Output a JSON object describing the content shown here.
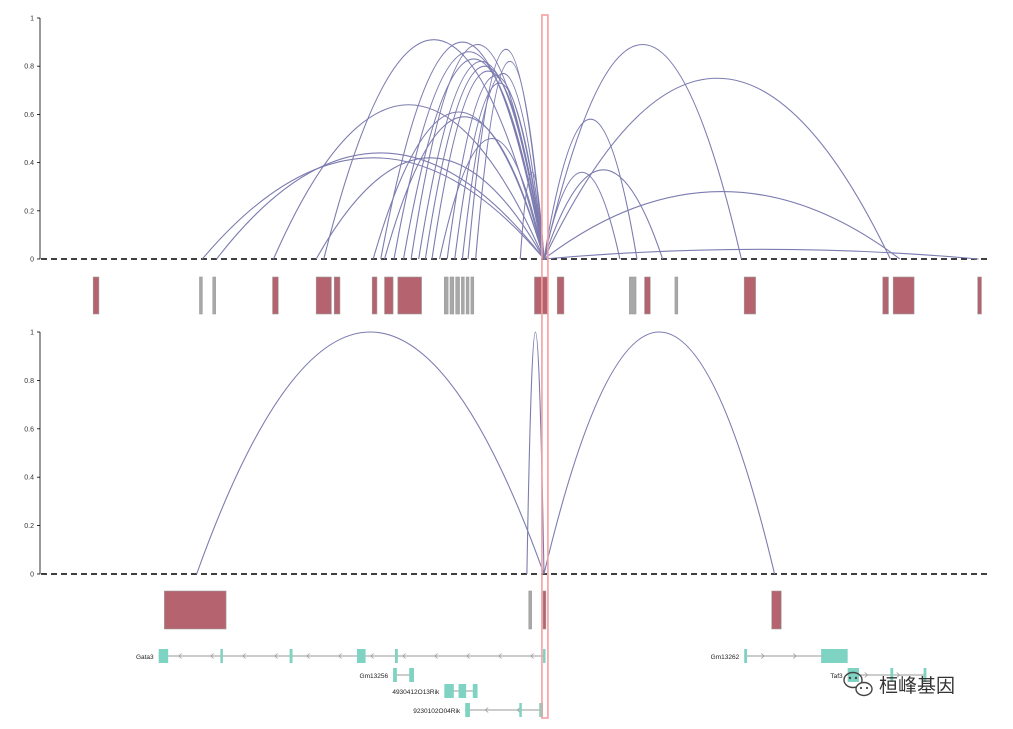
{
  "colors": {
    "arc": "#7c7cb0",
    "peak_fill": "#b5636e",
    "peak_stroke": "#9c9c9c",
    "peak_thin": "#a8a8a8",
    "gene": "#7fd3c2",
    "gene_line": "#9a9a9a",
    "highlight": "#f4a0a0",
    "axis": "#000000"
  },
  "chart_data": [
    {
      "type": "arc",
      "panel": "top",
      "xlim": [
        0,
        1000
      ],
      "ylim": [
        0,
        1
      ],
      "y_ticks": [
        {
          "v": 0,
          "t": "0"
        },
        {
          "v": 0.2,
          "t": "0.2"
        },
        {
          "v": 0.4,
          "t": "0.4"
        },
        {
          "v": 0.6,
          "t": "0.6"
        },
        {
          "v": 0.8,
          "t": "0.8"
        },
        {
          "v": 1,
          "t": "1"
        }
      ],
      "arcs": [
        {
          "start": 170,
          "end": 530,
          "height": 0.42
        },
        {
          "start": 185,
          "end": 530,
          "height": 0.44
        },
        {
          "start": 245,
          "end": 530,
          "height": 0.64
        },
        {
          "start": 290,
          "end": 530,
          "height": 0.42
        },
        {
          "start": 298,
          "end": 530,
          "height": 0.91
        },
        {
          "start": 350,
          "end": 530,
          "height": 0.61
        },
        {
          "start": 358,
          "end": 530,
          "height": 0.9
        },
        {
          "start": 362,
          "end": 530,
          "height": 0.59
        },
        {
          "start": 372,
          "end": 530,
          "height": 0.86
        },
        {
          "start": 382,
          "end": 530,
          "height": 0.83
        },
        {
          "start": 390,
          "end": 530,
          "height": 0.89
        },
        {
          "start": 398,
          "end": 530,
          "height": 0.82
        },
        {
          "start": 405,
          "end": 530,
          "height": 0.8
        },
        {
          "start": 412,
          "end": 530,
          "height": 0.78
        },
        {
          "start": 420,
          "end": 530,
          "height": 0.5
        },
        {
          "start": 428,
          "end": 530,
          "height": 0.76
        },
        {
          "start": 436,
          "end": 530,
          "height": 0.73
        },
        {
          "start": 444,
          "end": 530,
          "height": 0.77
        },
        {
          "start": 450,
          "end": 530,
          "height": 0.87
        },
        {
          "start": 458,
          "end": 530,
          "height": 0.82
        },
        {
          "start": 505,
          "end": 530,
          "height": 0.36
        },
        {
          "start": 530,
          "end": 610,
          "height": 0.36
        },
        {
          "start": 530,
          "end": 628,
          "height": 0.58
        },
        {
          "start": 530,
          "end": 655,
          "height": 0.37
        },
        {
          "start": 530,
          "end": 738,
          "height": 0.89
        },
        {
          "start": 530,
          "end": 905,
          "height": 0.28
        },
        {
          "start": 530,
          "end": 895,
          "height": 0.75
        },
        {
          "start": 530,
          "end": 988,
          "height": 0.04
        }
      ],
      "peaks": [
        {
          "start": 55,
          "end": 61
        },
        {
          "start": 167,
          "end": 170,
          "thin": true
        },
        {
          "start": 181,
          "end": 184,
          "thin": true
        },
        {
          "start": 244,
          "end": 250
        },
        {
          "start": 290,
          "end": 306
        },
        {
          "start": 309,
          "end": 315
        },
        {
          "start": 349,
          "end": 354
        },
        {
          "start": 362,
          "end": 371
        },
        {
          "start": 376,
          "end": 401
        },
        {
          "start": 425,
          "end": 429,
          "thin": true
        },
        {
          "start": 431,
          "end": 435,
          "thin": true
        },
        {
          "start": 437,
          "end": 441,
          "thin": true
        },
        {
          "start": 443,
          "end": 446,
          "thin": true
        },
        {
          "start": 448,
          "end": 451,
          "thin": true
        },
        {
          "start": 453,
          "end": 456,
          "thin": true
        },
        {
          "start": 520,
          "end": 534
        },
        {
          "start": 544,
          "end": 551
        },
        {
          "start": 620,
          "end": 627,
          "thin": true
        },
        {
          "start": 636,
          "end": 642
        },
        {
          "start": 668,
          "end": 671,
          "thin": true
        },
        {
          "start": 741,
          "end": 753
        },
        {
          "start": 887,
          "end": 893
        },
        {
          "start": 898,
          "end": 920
        },
        {
          "start": 987,
          "end": 991
        }
      ]
    },
    {
      "type": "arc",
      "panel": "bottom",
      "xlim": [
        0,
        1000
      ],
      "ylim": [
        0,
        1
      ],
      "y_ticks": [
        {
          "v": 0,
          "t": "0"
        },
        {
          "v": 0.2,
          "t": "0.2"
        },
        {
          "v": 0.4,
          "t": "0.4"
        },
        {
          "v": 0.6,
          "t": "0.6"
        },
        {
          "v": 0.8,
          "t": "0.8"
        },
        {
          "v": 1,
          "t": "1"
        }
      ],
      "arcs": [
        {
          "start": 164,
          "end": 530,
          "height": 1.0
        },
        {
          "start": 512,
          "end": 530,
          "height": 1.0
        },
        {
          "start": 530,
          "end": 773,
          "height": 1.0
        }
      ],
      "peaks": [
        {
          "start": 130,
          "end": 195
        },
        {
          "start": 514,
          "end": 517,
          "thin": true
        },
        {
          "start": 529,
          "end": 532
        },
        {
          "start": 770,
          "end": 780
        }
      ]
    }
  ],
  "highlight_x": 531,
  "genes": [
    {
      "name": "Gata3",
      "row": 0,
      "start": 124,
      "end": 530,
      "strand": "-",
      "exons": [
        [
          124,
          134
        ],
        [
          189,
          191
        ],
        [
          262,
          265
        ],
        [
          333,
          342
        ],
        [
          373,
          376
        ],
        [
          529,
          531
        ]
      ]
    },
    {
      "name": "Gm13262",
      "row": 0,
      "start": 741,
      "end": 850,
      "strand": "+",
      "exons": [
        [
          741,
          744
        ],
        [
          822,
          850
        ]
      ]
    },
    {
      "name": "Gm13256",
      "row": 1,
      "start": 371,
      "end": 393,
      "strand": "",
      "exons": [
        [
          371,
          375
        ],
        [
          388,
          393
        ]
      ]
    },
    {
      "name": "Taf3",
      "row": 1,
      "start": 850,
      "end": 933,
      "strand": "+",
      "exons": [
        [
          850,
          862
        ],
        [
          895,
          898
        ],
        [
          930,
          933
        ]
      ]
    },
    {
      "name": "4930412O13Rik",
      "row": 2,
      "start": 425,
      "end": 460,
      "strand": "",
      "exons": [
        [
          425,
          435
        ],
        [
          440,
          448
        ],
        [
          455,
          460
        ]
      ]
    },
    {
      "name": "9230102O04Rik",
      "row": 3,
      "start": 447,
      "end": 529,
      "strand": "-",
      "exons": [
        [
          447,
          452
        ],
        [
          504,
          506
        ],
        [
          525,
          529
        ]
      ]
    }
  ],
  "watermark": {
    "icon": "wechat-bubble-icon",
    "text": "桓峰基因"
  }
}
